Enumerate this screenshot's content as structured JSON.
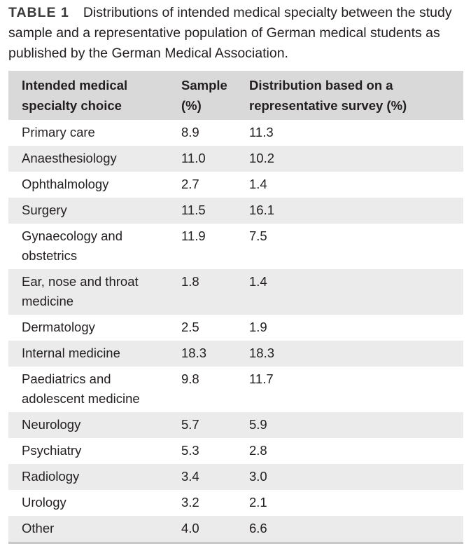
{
  "caption": {
    "label": "TABLE 1",
    "text": "Distributions of intended medical specialty between the study sample and a representative population of German medical students as published by the German Medical Association."
  },
  "table": {
    "headers": [
      "Intended medical specialty choice",
      "Sample (%)",
      "Distribution based on a representative survey (%)"
    ],
    "rows": [
      [
        "Primary care",
        "8.9",
        "11.3"
      ],
      [
        "Anaesthesiology",
        "11.0",
        "10.2"
      ],
      [
        "Ophthalmology",
        "2.7",
        "1.4"
      ],
      [
        "Surgery",
        "11.5",
        "16.1"
      ],
      [
        "Gynaecology and obstetrics",
        "11.9",
        "7.5"
      ],
      [
        "Ear, nose and throat medicine",
        "1.8",
        "1.4"
      ],
      [
        "Dermatology",
        "2.5",
        "1.9"
      ],
      [
        "Internal medicine",
        "18.3",
        "18.3"
      ],
      [
        "Paediatrics and adolescent medicine",
        "9.8",
        "11.7"
      ],
      [
        "Neurology",
        "5.7",
        "5.9"
      ],
      [
        "Psychiatry",
        "5.3",
        "2.8"
      ],
      [
        "Radiology",
        "3.4",
        "3.0"
      ],
      [
        "Urology",
        "3.2",
        "2.1"
      ],
      [
        "Other",
        "4.0",
        "6.6"
      ]
    ]
  }
}
